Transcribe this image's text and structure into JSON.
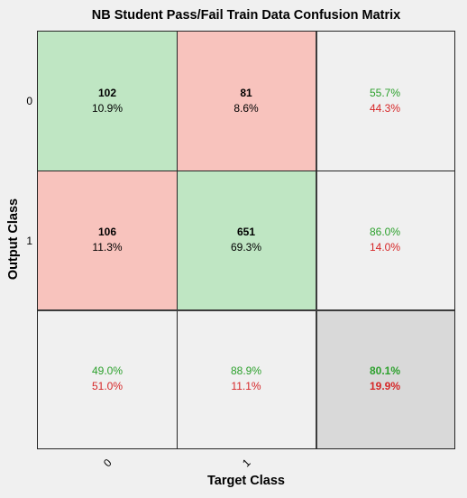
{
  "chart_data": {
    "type": "table",
    "title": "NB Student Pass/Fail Train Data Confusion Matrix",
    "xlabel": "Target Class",
    "ylabel": "Output Class",
    "x_tick_labels": [
      "0",
      "1"
    ],
    "y_tick_labels": [
      "0",
      "1"
    ],
    "cells": [
      [
        {
          "count": "102",
          "percent": "10.9%"
        },
        {
          "count": "81",
          "percent": "8.6%"
        }
      ],
      [
        {
          "count": "106",
          "percent": "11.3%"
        },
        {
          "count": "651",
          "percent": "69.3%"
        }
      ]
    ],
    "row_summary": [
      {
        "correct": "55.7%",
        "incorrect": "44.3%"
      },
      {
        "correct": "86.0%",
        "incorrect": "14.0%"
      }
    ],
    "column_summary": [
      {
        "correct": "49.0%",
        "incorrect": "51.0%"
      },
      {
        "correct": "88.9%",
        "incorrect": "11.1%"
      }
    ],
    "overall": {
      "correct": "80.1%",
      "incorrect": "19.9%"
    },
    "colors": {
      "correct_cell": "#bfe6c3",
      "incorrect_cell": "#f8c3bd",
      "summary_cell": "#f0f0f0",
      "overall_cell": "#d9d9d9",
      "correct_text": "#2ca02c",
      "incorrect_text": "#d62728"
    }
  }
}
